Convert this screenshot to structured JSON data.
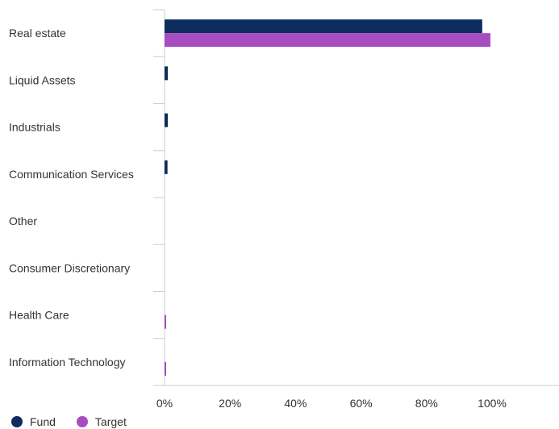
{
  "chart_data": {
    "type": "bar",
    "orientation": "horizontal",
    "categories": [
      "Real estate",
      "Liquid Assets",
      "Industrials",
      "Communication Services",
      "Other",
      "Consumer Discretionary",
      "Health Care",
      "Information Technology"
    ],
    "series": [
      {
        "name": "Fund",
        "color": "#0d2d5e",
        "values": [
          97.0,
          1.0,
          1.0,
          0.9,
          0.0,
          0.0,
          0.0,
          0.0
        ]
      },
      {
        "name": "Target",
        "color": "#a64dbf",
        "values": [
          99.5,
          0.0,
          0.0,
          0.0,
          0.0,
          0.0,
          0.3,
          0.3
        ]
      }
    ],
    "x_ticks": [
      "0%",
      "20%",
      "40%",
      "60%",
      "80%",
      "100%"
    ],
    "xlim": [
      0,
      120
    ],
    "title": "",
    "xlabel": "",
    "ylabel": "",
    "grid": false,
    "legend_position": "bottom-left"
  }
}
